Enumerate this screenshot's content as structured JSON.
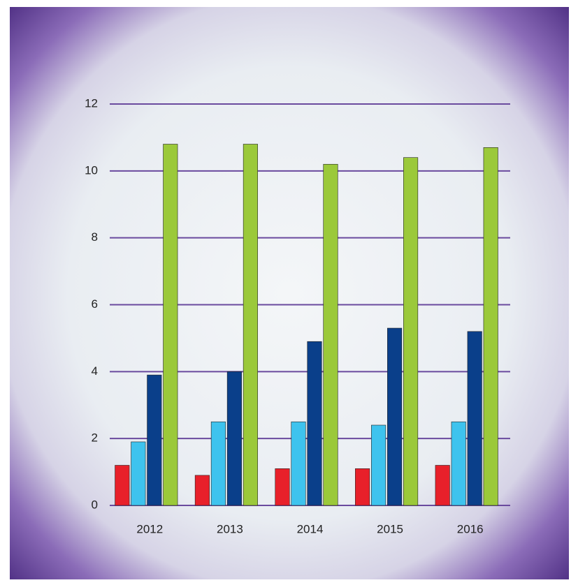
{
  "chart_data": {
    "type": "bar",
    "categories": [
      "2012",
      "2013",
      "2014",
      "2015",
      "2016"
    ],
    "series": [
      {
        "color": "#e8202a",
        "values": [
          1.2,
          0.9,
          1.1,
          1.1,
          1.2
        ]
      },
      {
        "color": "#3ec3ee",
        "values": [
          1.9,
          2.5,
          2.5,
          2.4,
          2.5
        ]
      },
      {
        "color": "#0a3f8a",
        "values": [
          3.9,
          4.0,
          4.9,
          5.3,
          5.2
        ]
      },
      {
        "color": "#9bc93a",
        "values": [
          10.8,
          10.8,
          10.2,
          10.4,
          10.7
        ]
      }
    ],
    "ylim": [
      0,
      12
    ],
    "yticks": [
      0,
      2,
      4,
      6,
      8,
      10,
      12
    ],
    "grid": true,
    "grid_color": "#6a4a9e"
  }
}
